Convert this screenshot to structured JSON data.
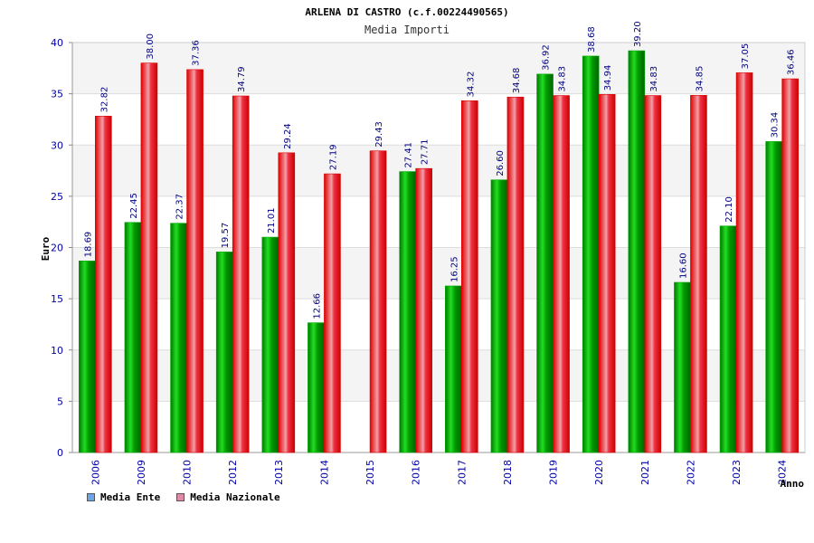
{
  "chart_data": {
    "type": "bar",
    "title": "ARLENA DI CASTRO (c.f.00224490565)",
    "subtitle": "Media Importi",
    "xlabel": "Anno",
    "ylabel": "Euro",
    "ylim": [
      0,
      40
    ],
    "yticks": [
      "0",
      "5",
      "10",
      "15",
      "20",
      "25",
      "30",
      "35",
      "40"
    ],
    "grid": true,
    "legend_position": "bottom-left",
    "categories": [
      "2006",
      "2009",
      "2010",
      "2012",
      "2013",
      "2014",
      "2015",
      "2016",
      "2017",
      "2018",
      "2019",
      "2020",
      "2021",
      "2022",
      "2023",
      "2024"
    ],
    "series": [
      {
        "name": "Media Ente",
        "values": [
          18.69,
          22.45,
          22.37,
          19.57,
          21.01,
          12.66,
          null,
          27.41,
          16.25,
          26.6,
          36.92,
          38.68,
          39.2,
          16.6,
          22.1,
          30.34
        ],
        "labels": [
          "18.69",
          "22.45",
          "22.37",
          "19.57",
          "21.01",
          "12.66",
          null,
          "27.41",
          "16.25",
          "26.60",
          "36.92",
          "38.68",
          "39.20",
          "16.60",
          "22.10",
          "30.34"
        ]
      },
      {
        "name": "Media Nazionale",
        "values": [
          32.82,
          38.0,
          37.36,
          34.79,
          29.24,
          27.19,
          29.43,
          27.71,
          34.32,
          34.68,
          34.83,
          34.94,
          34.83,
          34.85,
          37.05,
          36.46
        ],
        "labels": [
          "32.82",
          "38.00",
          "37.36",
          "34.79",
          "29.24",
          "27.19",
          "29.43",
          "27.71",
          "34.32",
          "34.68",
          "34.83",
          "34.94",
          "34.83",
          "34.85",
          "37.05",
          "36.46"
        ]
      }
    ]
  },
  "legend": {
    "items": [
      {
        "label": "Media Ente",
        "color": "#6aa6e8"
      },
      {
        "label": "Media Nazionale",
        "color": "#e08aa8"
      }
    ]
  },
  "colors": {
    "ente": "#00bb00",
    "nazionale": "#ee1122",
    "label": "#000080",
    "tick": "#0000aa"
  }
}
